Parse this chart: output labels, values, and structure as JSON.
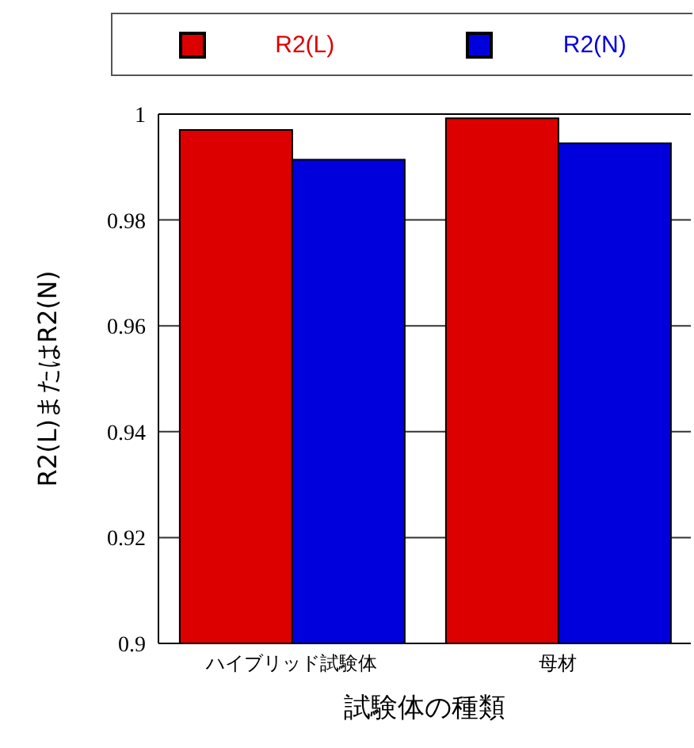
{
  "chart_data": {
    "type": "bar",
    "xlabel": "試験体の種類",
    "ylabel": "R2(L)またはR2(N)",
    "categories": [
      "ハイブリッド試験体",
      "母材"
    ],
    "series": [
      {
        "name": "R2(L)",
        "color": "#dd0000",
        "values": [
          0.997,
          0.9992
        ]
      },
      {
        "name": "R2(N)",
        "color": "#0000dd",
        "values": [
          0.9914,
          0.9945
        ]
      }
    ],
    "ylim": [
      0.9,
      1
    ],
    "yticks": [
      0.9,
      0.92,
      0.94,
      0.96,
      0.98,
      1
    ],
    "grid": true,
    "legend": "top"
  }
}
